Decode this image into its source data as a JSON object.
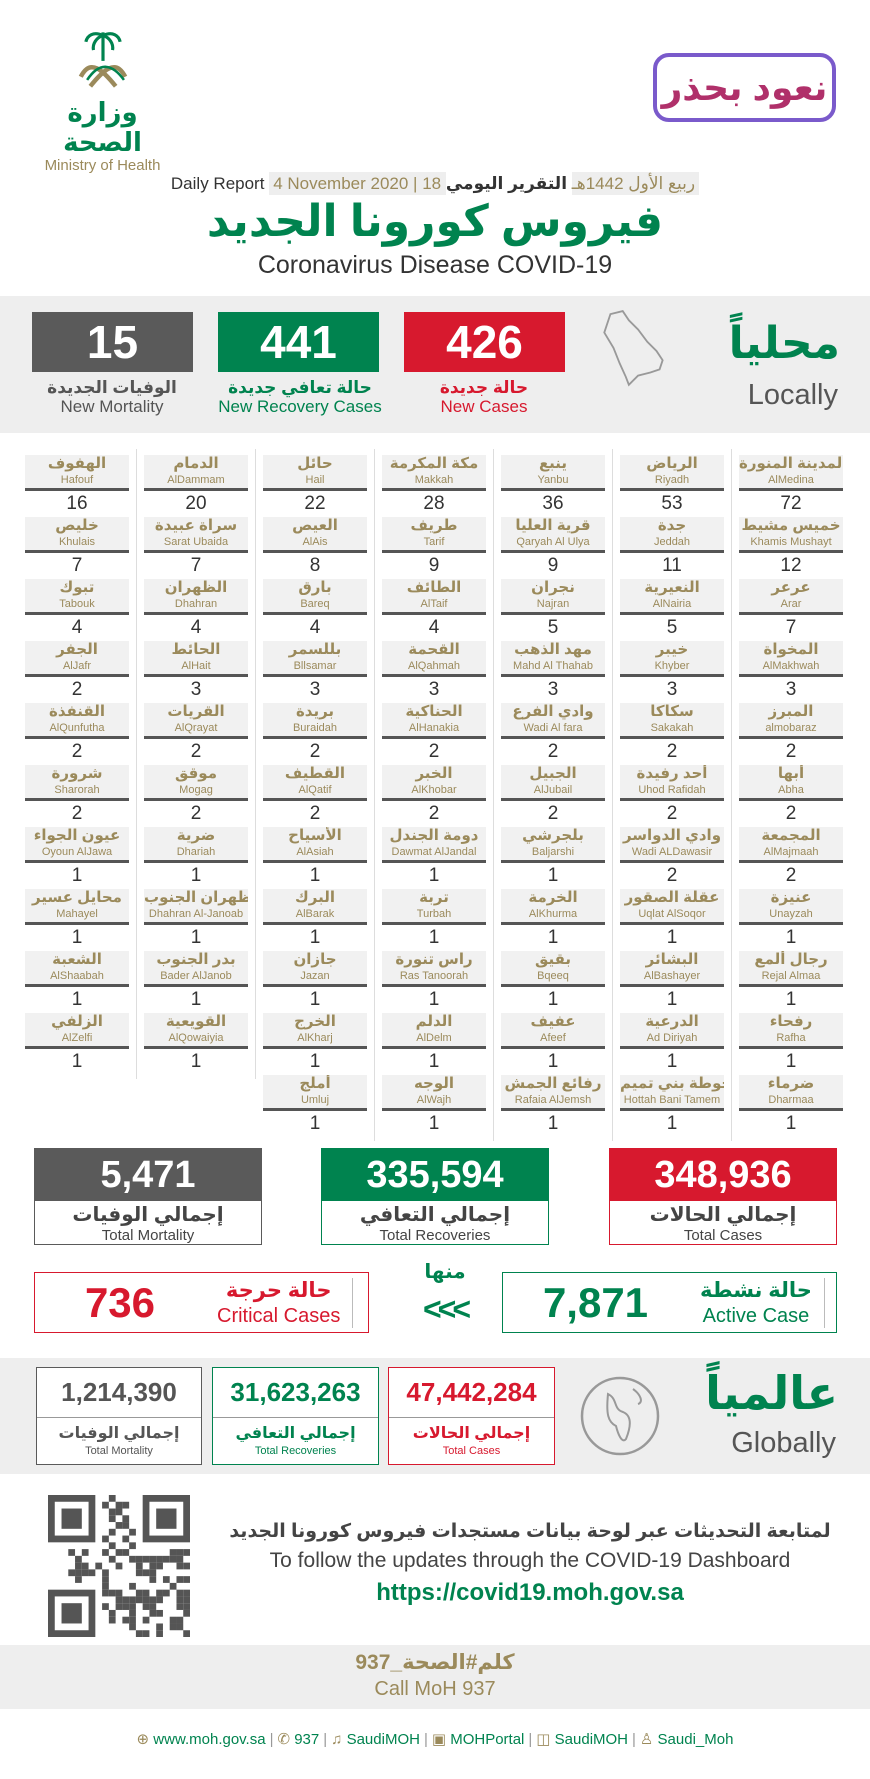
{
  "header": {
    "moh_logo_ar": "وزارة الصحة",
    "moh_logo_en": "Ministry of Health",
    "campaign_logo": "نعود بحذر",
    "report_ar": "التقرير اليومي",
    "date_hijri": "18 ربيع الأول 1442هـ",
    "date_gregorian": "4 November 2020",
    "report_en": "Daily Report",
    "title_ar": "فيروس كورونا الجديد",
    "title_en": "Coronavirus Disease COVID-19"
  },
  "local": {
    "heading_ar": "محلياً",
    "heading_en": "Locally",
    "new_cases": {
      "value": "426",
      "ar": "حالة جديدة",
      "en": "New Cases"
    },
    "new_recovery": {
      "value": "441",
      "ar": "حالة تعافي جديدة",
      "en": "New Recovery Cases"
    },
    "new_mortality": {
      "value": "15",
      "ar": "الوفيات الجديدة",
      "en": "New Mortality"
    }
  },
  "cities": [
    [
      {
        "ar": "المدينة المنورة",
        "en": "AlMedina",
        "n": "72"
      },
      {
        "ar": "خميس مشيط",
        "en": "Khamis Mushayt",
        "n": "12"
      },
      {
        "ar": "عرعر",
        "en": "Arar",
        "n": "7"
      },
      {
        "ar": "المخواة",
        "en": "AlMakhwah",
        "n": "3"
      },
      {
        "ar": "المبرز",
        "en": "almobaraz",
        "n": "2"
      },
      {
        "ar": "أبها",
        "en": "Abha",
        "n": "2"
      },
      {
        "ar": "المجمعة",
        "en": "AlMajmaah",
        "n": "2"
      },
      {
        "ar": "عنيزة",
        "en": "Unayzah",
        "n": "1"
      },
      {
        "ar": "رجال ألمع",
        "en": "Rejal Almaa",
        "n": "1"
      },
      {
        "ar": "رفحاء",
        "en": "Rafha",
        "n": "1"
      },
      {
        "ar": "ضرماء",
        "en": "Dharmaa",
        "n": "1"
      }
    ],
    [
      {
        "ar": "الرياض",
        "en": "Riyadh",
        "n": "53"
      },
      {
        "ar": "جدة",
        "en": "Jeddah",
        "n": "11"
      },
      {
        "ar": "النعيرية",
        "en": "AlNairia",
        "n": "5"
      },
      {
        "ar": "خيبر",
        "en": "Khyber",
        "n": "3"
      },
      {
        "ar": "سكاكا",
        "en": "Sakakah",
        "n": "2"
      },
      {
        "ar": "أحد رفيدة",
        "en": "Uhod Rafidah",
        "n": "2"
      },
      {
        "ar": "وادي الدواسر",
        "en": "Wadi ALDawasir",
        "n": "2"
      },
      {
        "ar": "عقلة الصقور",
        "en": "Uqlat AlSoqor",
        "n": "1"
      },
      {
        "ar": "البشائر",
        "en": "AlBashayer",
        "n": "1"
      },
      {
        "ar": "الدرعية",
        "en": "Ad Diriyah",
        "n": "1"
      },
      {
        "ar": "حوطة بني تميم",
        "en": "Hottah Bani Tamem",
        "n": "1"
      }
    ],
    [
      {
        "ar": "ينبع",
        "en": "Yanbu",
        "n": "36"
      },
      {
        "ar": "قرية العليا",
        "en": "Qaryah Al Ulya",
        "n": "9"
      },
      {
        "ar": "نجران",
        "en": "Najran",
        "n": "5"
      },
      {
        "ar": "مهد الذهب",
        "en": "Mahd Al Thahab",
        "n": "3"
      },
      {
        "ar": "وادي الفرع",
        "en": "Wadi Al fara",
        "n": "2"
      },
      {
        "ar": "الجبيل",
        "en": "AlJubail",
        "n": "2"
      },
      {
        "ar": "بلجرشي",
        "en": "Baljarshi",
        "n": "1"
      },
      {
        "ar": "الخرمة",
        "en": "AlKhurma",
        "n": "1"
      },
      {
        "ar": "بقيق",
        "en": "Bqeeq",
        "n": "1"
      },
      {
        "ar": "عفيف",
        "en": "Afeef",
        "n": "1"
      },
      {
        "ar": "رفائع الجمش",
        "en": "Rafaia AlJemsh",
        "n": "1"
      }
    ],
    [
      {
        "ar": "مكة المكرمة",
        "en": "Makkah",
        "n": "28"
      },
      {
        "ar": "طريف",
        "en": "Tarif",
        "n": "9"
      },
      {
        "ar": "الطائف",
        "en": "AlTaif",
        "n": "4"
      },
      {
        "ar": "القحمة",
        "en": "AlQahmah",
        "n": "3"
      },
      {
        "ar": "الحناكية",
        "en": "AlHanakia",
        "n": "2"
      },
      {
        "ar": "الخبر",
        "en": "AlKhobar",
        "n": "2"
      },
      {
        "ar": "دومة الجندل",
        "en": "Dawmat AlJandal",
        "n": "1"
      },
      {
        "ar": "تربة",
        "en": "Turbah",
        "n": "1"
      },
      {
        "ar": "راس تنورة",
        "en": "Ras Tanoorah",
        "n": "1"
      },
      {
        "ar": "الدلم",
        "en": "AlDelm",
        "n": "1"
      },
      {
        "ar": "الوجه",
        "en": "AlWajh",
        "n": "1"
      }
    ],
    [
      {
        "ar": "حائل",
        "en": "Hail",
        "n": "22"
      },
      {
        "ar": "العيص",
        "en": "AlAis",
        "n": "8"
      },
      {
        "ar": "بارق",
        "en": "Bareq",
        "n": "4"
      },
      {
        "ar": "بللسمر",
        "en": "Bllsamar",
        "n": "3"
      },
      {
        "ar": "بريدة",
        "en": "Buraidah",
        "n": "2"
      },
      {
        "ar": "القطيف",
        "en": "AlQatif",
        "n": "2"
      },
      {
        "ar": "الأسياح",
        "en": "AlAsiah",
        "n": "1"
      },
      {
        "ar": "البرك",
        "en": "AlBarak",
        "n": "1"
      },
      {
        "ar": "جازان",
        "en": "Jazan",
        "n": "1"
      },
      {
        "ar": "الخرج",
        "en": "AlKharj",
        "n": "1"
      },
      {
        "ar": "أملج",
        "en": "Umluj",
        "n": "1"
      }
    ],
    [
      {
        "ar": "الدمام",
        "en": "AlDammam",
        "n": "20"
      },
      {
        "ar": "سراة عبيدة",
        "en": "Sarat Ubaida",
        "n": "7"
      },
      {
        "ar": "الظهران",
        "en": "Dhahran",
        "n": "4"
      },
      {
        "ar": "الحائط",
        "en": "AlHait",
        "n": "3"
      },
      {
        "ar": "القريات",
        "en": "AlQrayat",
        "n": "2"
      },
      {
        "ar": "موقق",
        "en": "Mogag",
        "n": "2"
      },
      {
        "ar": "ضرية",
        "en": "Dhariah",
        "n": "1"
      },
      {
        "ar": "ظهران الجنوب",
        "en": "Dhahran Al-Janoab",
        "n": "1"
      },
      {
        "ar": "بدر الجنوب",
        "en": "Bader AlJanob",
        "n": "1"
      },
      {
        "ar": "القويعية",
        "en": "AlQowaiyia",
        "n": "1"
      }
    ],
    [
      {
        "ar": "الهفوف",
        "en": "Hafouf",
        "n": "16"
      },
      {
        "ar": "خليص",
        "en": "Khulais",
        "n": "7"
      },
      {
        "ar": "تبوك",
        "en": "Tabouk",
        "n": "4"
      },
      {
        "ar": "الجفر",
        "en": "AlJafr",
        "n": "2"
      },
      {
        "ar": "القنفذة",
        "en": "AlQunfutha",
        "n": "2"
      },
      {
        "ar": "شرورة",
        "en": "Sharorah",
        "n": "2"
      },
      {
        "ar": "عيون الجواء",
        "en": "Oyoun AlJawa",
        "n": "1"
      },
      {
        "ar": "محايل عسير",
        "en": "Mahayel",
        "n": "1"
      },
      {
        "ar": "الشعبة",
        "en": "AlShaabah",
        "n": "1"
      },
      {
        "ar": "الزلفي",
        "en": "AlZelfi",
        "n": "1"
      }
    ]
  ],
  "totals": {
    "cases": {
      "value": "348,936",
      "ar": "إجمالي الحالات",
      "en": "Total Cases"
    },
    "recoveries": {
      "value": "335,594",
      "ar": "إجمالي التعافي",
      "en": "Total Recoveries"
    },
    "mortality": {
      "value": "5,471",
      "ar": "إجمالي الوفيات",
      "en": "Total Mortality"
    },
    "of_which": "منها",
    "arrows": "<<<",
    "active": {
      "value": "7,871",
      "ar": "حالة نشطة",
      "en": "Active Case"
    },
    "critical": {
      "value": "736",
      "ar": "حالة حرجة",
      "en": "Critical Cases"
    }
  },
  "global": {
    "heading_ar": "عالمياً",
    "heading_en": "Globally",
    "cases": {
      "value": "47,442,284",
      "ar": "إجمالي الحالات",
      "en": "Total Cases"
    },
    "recoveries": {
      "value": "31,623,263",
      "ar": "إجمالي التعافي",
      "en": "Total Recoveries"
    },
    "mortality": {
      "value": "1,214,390",
      "ar": "إجمالي الوفيات",
      "en": "Total Mortality"
    }
  },
  "dashboard": {
    "ar": "لمتابعة التحديثات عبر لوحة بيانات مستجدات فيروس كورونا الجديد",
    "en": "To follow the updates through the COVID-19 Dashboard",
    "url": "https://covid19.moh.gov.sa"
  },
  "call": {
    "ar": "كلم#الصحة_937",
    "en": "Call MoH 937"
  },
  "footer": [
    {
      "icon": "globe-icon",
      "glyph": "⊕",
      "text": "www.moh.gov.sa"
    },
    {
      "icon": "phone-icon",
      "glyph": "✆",
      "text": "937"
    },
    {
      "icon": "twitter-icon",
      "glyph": "♫",
      "text": "SaudiMOH"
    },
    {
      "icon": "youtube-icon",
      "glyph": "▣",
      "text": "MOHPortal"
    },
    {
      "icon": "facebook-icon",
      "glyph": "◫",
      "text": "SaudiMOH"
    },
    {
      "icon": "snapchat-icon",
      "glyph": "♙",
      "text": "Saudi_Moh"
    }
  ],
  "colors": {
    "red": "#d7192e",
    "green": "#00834f",
    "gray": "#5a5a5a",
    "gold": "#9b8a5b"
  }
}
